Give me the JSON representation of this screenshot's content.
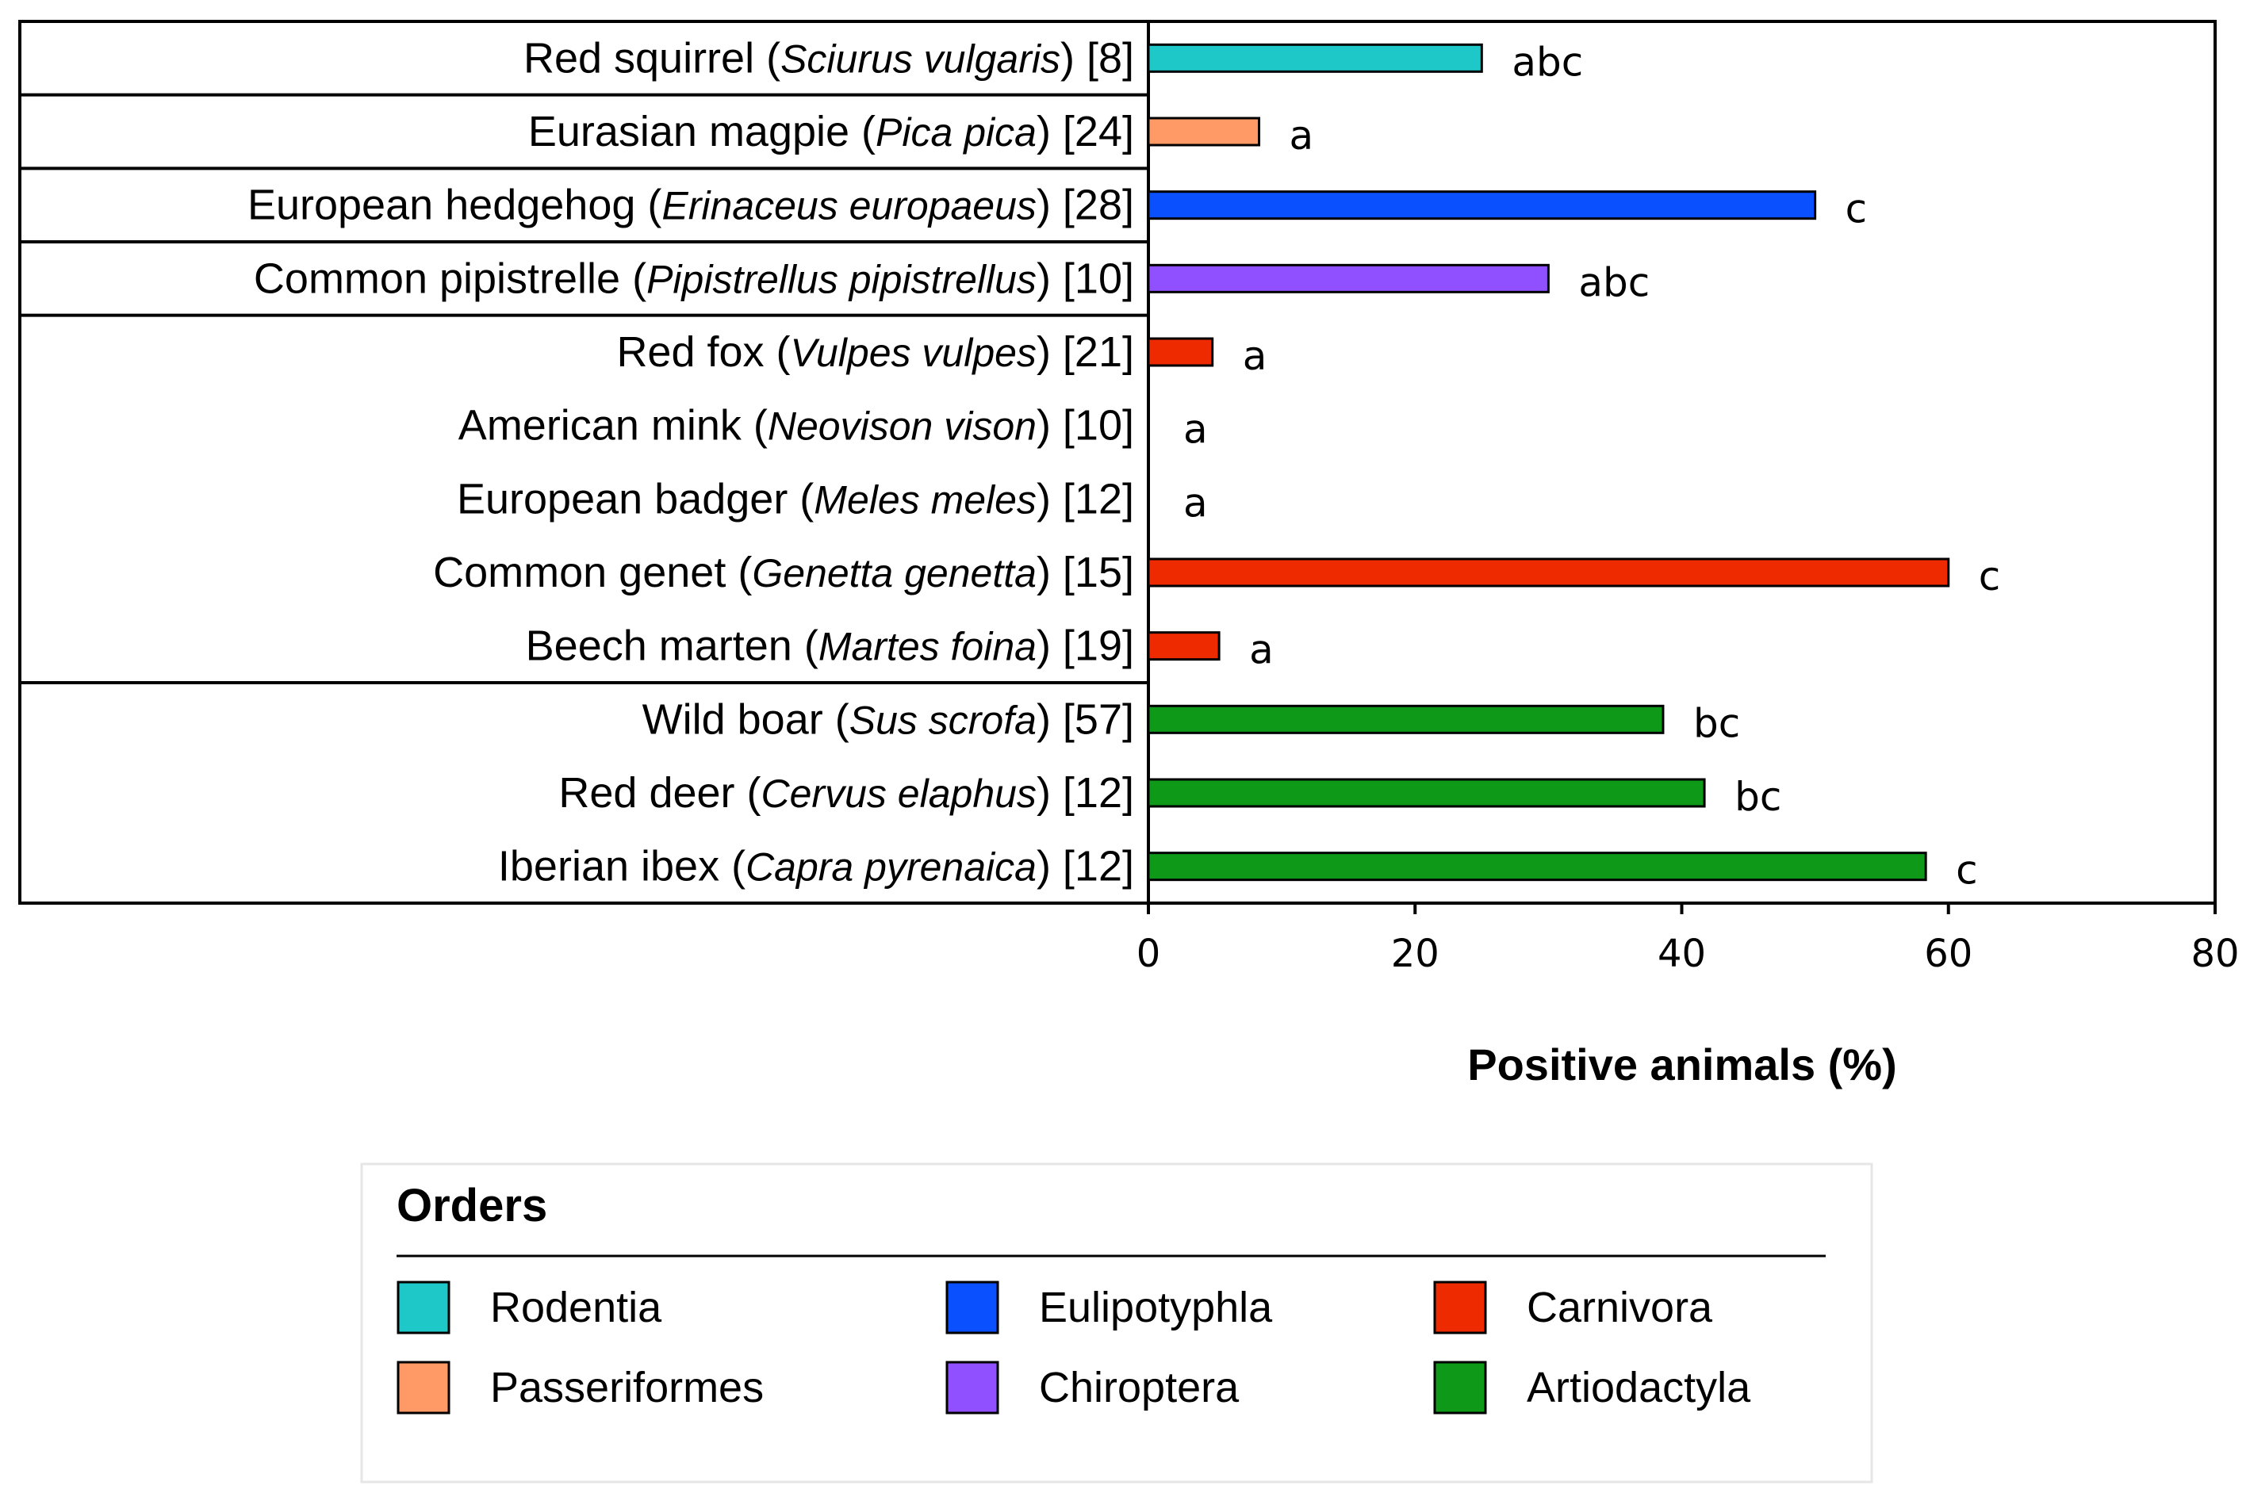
{
  "chart_data": {
    "type": "bar",
    "orientation": "horizontal",
    "xlabel": "Positive animals (%)",
    "xlim": [
      0,
      80
    ],
    "xticks": [
      "0",
      "20",
      "40",
      "60",
      "80"
    ],
    "xtick_values": [
      0,
      20,
      40,
      60,
      80
    ],
    "categories": [
      {
        "common": "Red squirrel",
        "scientific": "Sciurus vulgaris",
        "n": "[8]",
        "value": 25,
        "letter": "abc",
        "order": "Rodentia"
      },
      {
        "common": "Eurasian magpie",
        "scientific": "Pica pica",
        "n": "[24]",
        "value": 8.3,
        "letter": "a",
        "order": "Passeriformes"
      },
      {
        "common": "European hedgehog",
        "scientific": "Erinaceus europaeus",
        "n": "[28]",
        "value": 50,
        "letter": "c",
        "order": "Eulipotyphla"
      },
      {
        "common": "Common pipistrelle",
        "scientific": "Pipistrellus pipistrellus",
        "n": "[10]",
        "value": 30,
        "letter": "abc",
        "order": "Chiroptera"
      },
      {
        "common": "Red fox",
        "scientific": "Vulpes vulpes",
        "n": "[21]",
        "value": 4.8,
        "letter": "a",
        "order": "Carnivora"
      },
      {
        "common": "American mink",
        "scientific": "Neovison vison",
        "n": "[10]",
        "value": 0,
        "letter": "a",
        "order": "Carnivora"
      },
      {
        "common": "European badger",
        "scientific": "Meles meles",
        "n": "[12]",
        "value": 0,
        "letter": "a",
        "order": "Carnivora"
      },
      {
        "common": "Common genet",
        "scientific": "Genetta genetta",
        "n": "[15]",
        "value": 60,
        "letter": "c",
        "order": "Carnivora"
      },
      {
        "common": "Beech marten",
        "scientific": "Martes foina",
        "n": "[19]",
        "value": 5.3,
        "letter": "a",
        "order": "Carnivora"
      },
      {
        "common": "Wild boar",
        "scientific": "Sus scrofa",
        "n": "[57]",
        "value": 38.6,
        "letter": "bc",
        "order": "Artiodactyla"
      },
      {
        "common": "Red deer",
        "scientific": "Cervus elaphus",
        "n": "[12]",
        "value": 41.7,
        "letter": "bc",
        "order": "Artiodactyla"
      },
      {
        "common": "Iberian ibex",
        "scientific": "Capra pyrenaica",
        "n": "[12]",
        "value": 58.3,
        "letter": "c",
        "order": "Artiodactyla"
      }
    ],
    "group_boundaries_after_index": [
      0,
      1,
      2,
      3,
      8
    ],
    "legend": {
      "title": "Orders",
      "entries": [
        {
          "name": "Rodentia",
          "color": "#1ec8c8"
        },
        {
          "name": "Passeriformes",
          "color": "#ff9a66"
        },
        {
          "name": "Eulipotyphla",
          "color": "#0a50ff"
        },
        {
          "name": "Chiroptera",
          "color": "#9150ff"
        },
        {
          "name": "Carnivora",
          "color": "#ee2a00"
        },
        {
          "name": "Artiodactyla",
          "color": "#0e9a18"
        }
      ]
    }
  }
}
